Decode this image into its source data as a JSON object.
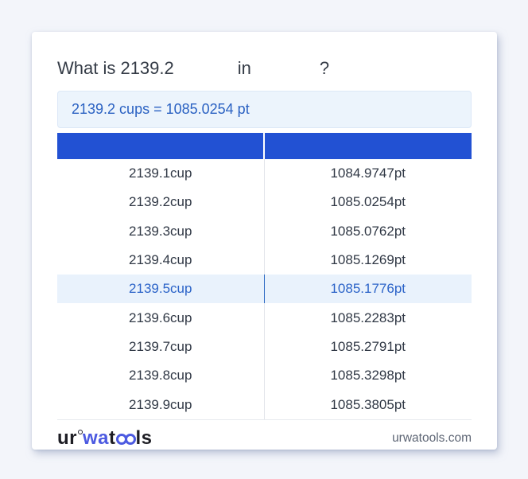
{
  "title": {
    "part1": "What is 2139.2",
    "part2": "in",
    "part3": "?"
  },
  "result": {
    "text": "2139.2 cups = 1085.0254 pt"
  },
  "table": {
    "header": {
      "col1_label": "",
      "col2_label": ""
    },
    "rows": [
      {
        "cup": "2139.1cup",
        "pt": "1084.9747pt",
        "highlighted": false
      },
      {
        "cup": "2139.2cup",
        "pt": "1085.0254pt",
        "highlighted": false
      },
      {
        "cup": "2139.3cup",
        "pt": "1085.0762pt",
        "highlighted": false
      },
      {
        "cup": "2139.4cup",
        "pt": "1085.1269pt",
        "highlighted": false
      },
      {
        "cup": "2139.5cup",
        "pt": "1085.1776pt",
        "highlighted": true
      },
      {
        "cup": "2139.6cup",
        "pt": "1085.2283pt",
        "highlighted": false
      },
      {
        "cup": "2139.7cup",
        "pt": "1085.2791pt",
        "highlighted": false
      },
      {
        "cup": "2139.8cup",
        "pt": "1085.3298pt",
        "highlighted": false
      },
      {
        "cup": "2139.9cup",
        "pt": "1085.3805pt",
        "highlighted": false
      }
    ]
  },
  "footer": {
    "logo": {
      "seg1": "ur",
      "seg2": "wa",
      "seg3": "t",
      "seg4": "ls"
    },
    "site": "urwatools.com"
  },
  "colors": {
    "page_bg": "#f3f5fa",
    "table_header_blue": "#2251d3",
    "result_text_blue": "#2a61c2",
    "result_bg": "#ecf4fc",
    "highlight_row_bg": "#e9f2fc",
    "highlight_text_blue": "#2b63c8",
    "logo_blue": "#4c5ae1",
    "body_text": "#303845",
    "footer_text_gray": "#5e6675"
  }
}
